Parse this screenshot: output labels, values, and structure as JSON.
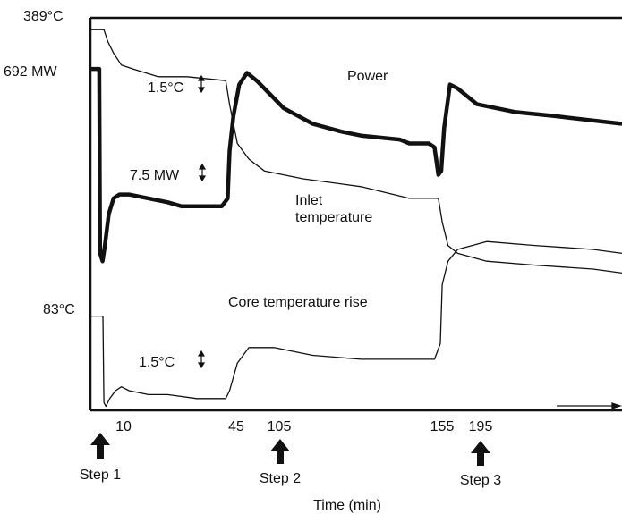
{
  "chart_data": {
    "type": "line",
    "title": "",
    "xlabel": "Time (min)",
    "ylabel": "",
    "x_ticks": [
      "10",
      "45",
      "105",
      "155",
      "195"
    ],
    "y_markers": {
      "inlet_top": "389°C",
      "power_level": "692 MW",
      "core_rise_level": "83°C"
    },
    "series": [
      {
        "name": "Power",
        "style": "thick",
        "points": [
          [
            0,
            0.13
          ],
          [
            4.6,
            0.13
          ],
          [
            5,
            0.6
          ],
          [
            6.3,
            0.62
          ],
          [
            7.5,
            0.58
          ],
          [
            9.5,
            0.5
          ],
          [
            12,
            0.46
          ],
          [
            15,
            0.45
          ],
          [
            20,
            0.45
          ],
          [
            30,
            0.46
          ],
          [
            40,
            0.47
          ],
          [
            47,
            0.48
          ],
          [
            60,
            0.48
          ],
          [
            68,
            0.48
          ],
          [
            71,
            0.46
          ],
          [
            72,
            0.34
          ],
          [
            74,
            0.25
          ],
          [
            77,
            0.17
          ],
          [
            81,
            0.14
          ],
          [
            86,
            0.16
          ],
          [
            100,
            0.23
          ],
          [
            115,
            0.27
          ],
          [
            130,
            0.29
          ],
          [
            140,
            0.3
          ],
          [
            160,
            0.31
          ],
          [
            165,
            0.32
          ],
          [
            175,
            0.32
          ],
          [
            178,
            0.33
          ],
          [
            180,
            0.4
          ],
          [
            181.5,
            0.39
          ],
          [
            183,
            0.28
          ],
          [
            186,
            0.17
          ],
          [
            190,
            0.18
          ],
          [
            200,
            0.22
          ],
          [
            220,
            0.24
          ],
          [
            240,
            0.25
          ],
          [
            275,
            0.27
          ]
        ]
      },
      {
        "name": "Inlet temperature",
        "style": "thin",
        "points": [
          [
            0,
            0.03
          ],
          [
            7,
            0.03
          ],
          [
            9,
            0.06
          ],
          [
            12,
            0.09
          ],
          [
            16,
            0.12
          ],
          [
            22,
            0.13
          ],
          [
            35,
            0.15
          ],
          [
            50,
            0.15
          ],
          [
            70,
            0.16
          ],
          [
            72,
            0.22
          ],
          [
            76,
            0.32
          ],
          [
            82,
            0.36
          ],
          [
            90,
            0.39
          ],
          [
            110,
            0.41
          ],
          [
            140,
            0.43
          ],
          [
            165,
            0.46
          ],
          [
            180,
            0.46
          ],
          [
            182,
            0.52
          ],
          [
            185,
            0.58
          ],
          [
            190,
            0.6
          ],
          [
            205,
            0.62
          ],
          [
            230,
            0.63
          ],
          [
            260,
            0.64
          ],
          [
            275,
            0.65
          ]
        ]
      },
      {
        "name": "Core temperature rise",
        "style": "thin",
        "points": [
          [
            0,
            0.76
          ],
          [
            6.5,
            0.76
          ],
          [
            7,
            0.98
          ],
          [
            8,
            0.99
          ],
          [
            10,
            0.97
          ],
          [
            13,
            0.95
          ],
          [
            16,
            0.94
          ],
          [
            20,
            0.95
          ],
          [
            30,
            0.96
          ],
          [
            40,
            0.96
          ],
          [
            55,
            0.97
          ],
          [
            70,
            0.97
          ],
          [
            72,
            0.95
          ],
          [
            76,
            0.88
          ],
          [
            82,
            0.84
          ],
          [
            95,
            0.84
          ],
          [
            115,
            0.86
          ],
          [
            140,
            0.87
          ],
          [
            160,
            0.87
          ],
          [
            178,
            0.87
          ],
          [
            181,
            0.83
          ],
          [
            182,
            0.68
          ],
          [
            185,
            0.62
          ],
          [
            190,
            0.59
          ],
          [
            205,
            0.57
          ],
          [
            230,
            0.58
          ],
          [
            260,
            0.59
          ],
          [
            275,
            0.6
          ]
        ]
      }
    ],
    "annotations": [
      {
        "text": "Power",
        "series": "Power"
      },
      {
        "text": "Inlet",
        "series": "Inlet temperature"
      },
      {
        "text": "temperature",
        "series": "Inlet temperature"
      },
      {
        "text": "Core temperature rise",
        "series": "Core temperature rise"
      },
      {
        "text": "1.5°C",
        "note": "inlet scale"
      },
      {
        "text": "7.5 MW",
        "note": "power scale"
      },
      {
        "text": "1.5°C",
        "note": "core scale"
      }
    ],
    "steps": [
      "Step 1",
      "Step 2",
      "Step 3"
    ]
  }
}
